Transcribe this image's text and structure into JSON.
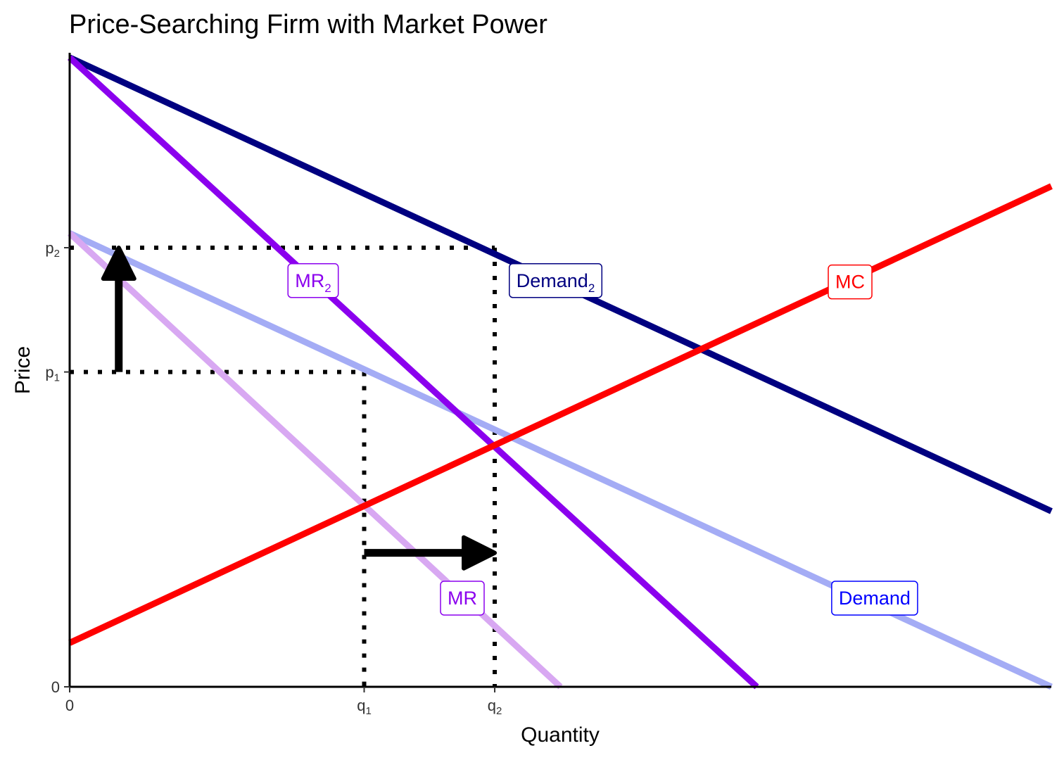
{
  "chart_data": {
    "type": "line",
    "title": "Price-Searching Firm with Market Power",
    "xlabel": "Quantity",
    "ylabel": "Price",
    "xlim": [
      0,
      10
    ],
    "ylim": [
      0,
      10
    ],
    "grid": false,
    "legend": "none",
    "x_ticks": [
      {
        "value": 0,
        "label": "0",
        "sub": ""
      },
      {
        "value": 3,
        "label": "q",
        "sub": "1"
      },
      {
        "value": 4.33,
        "label": "q",
        "sub": "2"
      }
    ],
    "y_ticks": [
      {
        "value": 0,
        "label": "0",
        "sub": ""
      },
      {
        "value": 7.17,
        "label": "p",
        "sub": "1"
      },
      {
        "value": 10,
        "label": "p",
        "sub": "2"
      }
    ],
    "series": [
      {
        "key": "demand",
        "color": "#A4ACF5",
        "x": [
          0,
          10
        ],
        "y": [
          10.33,
          0
        ],
        "label": {
          "text": "Demand",
          "sub": "",
          "x": 8.2,
          "y": 2.02,
          "color": "#0000FF"
        }
      },
      {
        "key": "mr",
        "color": "#D8A8F2",
        "x": [
          0,
          5.0
        ],
        "y": [
          10.33,
          0
        ],
        "label": {
          "text": "MR",
          "sub": "",
          "x": 4.0,
          "y": 2.02,
          "color": "#8B00EE"
        }
      },
      {
        "key": "demand2",
        "color": "#000080",
        "x": [
          0,
          10
        ],
        "y": [
          14.33,
          4.0
        ],
        "label": {
          "text": "Demand",
          "sub": "2",
          "x": 4.95,
          "y": 9.25,
          "color": "#000080"
        }
      },
      {
        "key": "mr2",
        "color": "#8B00EE",
        "x": [
          0,
          7.0
        ],
        "y": [
          14.33,
          0
        ],
        "label": {
          "text": "MR",
          "sub": "2",
          "x": 2.48,
          "y": 9.25,
          "color": "#8B00EE"
        }
      },
      {
        "key": "mc",
        "color": "#FF0000",
        "x": [
          0,
          10
        ],
        "y": [
          1.0,
          11.4
        ],
        "label": {
          "text": "MC",
          "sub": "",
          "x": 7.95,
          "y": 9.22,
          "color": "#FF0000"
        }
      }
    ],
    "guides": [
      {
        "key": "p1-guide",
        "x": [
          0,
          3
        ],
        "y": [
          7.17,
          7.17
        ]
      },
      {
        "key": "q1-guide",
        "x": [
          3,
          3
        ],
        "y": [
          7.17,
          0
        ]
      },
      {
        "key": "p2-guide",
        "x": [
          0,
          4.33
        ],
        "y": [
          10,
          10
        ]
      },
      {
        "key": "q2-guide",
        "x": [
          4.33,
          4.33
        ],
        "y": [
          10,
          0
        ]
      }
    ],
    "arrows": [
      {
        "key": "price-increase",
        "from": [
          0.5,
          7.17
        ],
        "to": [
          0.5,
          10
        ]
      },
      {
        "key": "quantity-increase",
        "from": [
          3.0,
          3.05
        ],
        "to": [
          4.33,
          3.05
        ]
      }
    ]
  }
}
